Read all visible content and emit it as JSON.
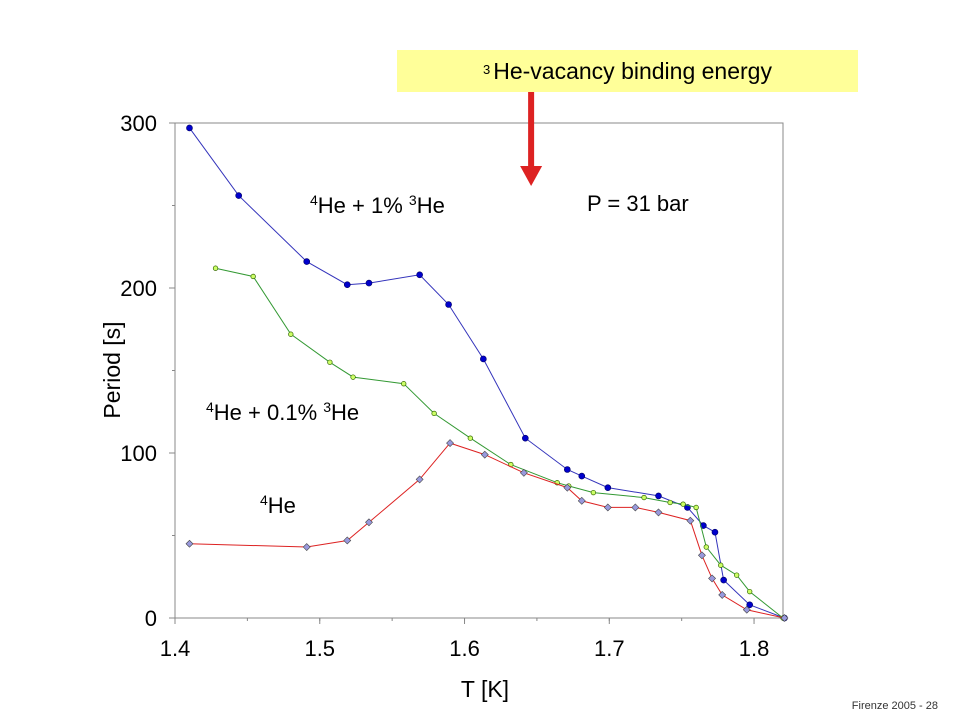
{
  "banner": {
    "superscript": "3",
    "text": "He-vacancy binding energy"
  },
  "footer": "Firenze  2005 - 28",
  "chart_data": {
    "type": "line",
    "title": "",
    "xlabel": "T [K]",
    "ylabel": "Period [s]",
    "xlim": [
      1.4,
      1.82
    ],
    "ylim": [
      0,
      300
    ],
    "x_ticks": [
      {
        "value": 1.4,
        "label": "1.4"
      },
      {
        "value": 1.5,
        "label": "1.5"
      },
      {
        "value": 1.6,
        "label": "1.6"
      },
      {
        "value": 1.7,
        "label": "1.7"
      },
      {
        "value": 1.8,
        "label": "1.8"
      }
    ],
    "y_ticks": [
      {
        "value": 0,
        "label": "0"
      },
      {
        "value": 100,
        "label": "100"
      },
      {
        "value": 200,
        "label": "200"
      },
      {
        "value": 300,
        "label": "300"
      }
    ],
    "grid": false,
    "annotations": {
      "pressure": "P = 31 bar",
      "arrow_x": 1.646
    },
    "series": [
      {
        "name": "4He + 1% 3He",
        "label_parts": [
          "4",
          "He + 1% ",
          "3",
          "He"
        ],
        "color": "#3333bb",
        "marker_color": "#0000cc",
        "marker": "circle",
        "x": [
          1.41,
          1.444,
          1.491,
          1.519,
          1.534,
          1.569,
          1.589,
          1.613,
          1.642,
          1.671,
          1.681,
          1.699,
          1.734,
          1.754,
          1.765,
          1.773,
          1.779,
          1.797,
          1.821
        ],
        "y": [
          297,
          256,
          216,
          202,
          203,
          208,
          190,
          157,
          109,
          90,
          86,
          79,
          74,
          67,
          56,
          52,
          23,
          8,
          0
        ]
      },
      {
        "name": "4He + 0.1% 3He",
        "label_parts": [
          "4",
          "He + 0.1% ",
          "3",
          "He"
        ],
        "color": "#339933",
        "marker_color": "#ccff66",
        "marker": "circle-small",
        "x": [
          1.428,
          1.454,
          1.48,
          1.507,
          1.523,
          1.558,
          1.579,
          1.604,
          1.632,
          1.664,
          1.672,
          1.689,
          1.724,
          1.742,
          1.751,
          1.76,
          1.767,
          1.777,
          1.788,
          1.797,
          1.82
        ],
        "y": [
          212,
          207,
          172,
          155,
          146,
          142,
          124,
          109,
          93,
          82,
          80,
          76,
          73,
          70,
          69,
          67,
          43,
          32,
          26,
          16,
          0
        ]
      },
      {
        "name": "4He",
        "label_parts": [
          "4",
          "He"
        ],
        "color": "#dd2222",
        "marker_color": "#9999dd",
        "marker": "diamond",
        "x": [
          1.41,
          1.491,
          1.519,
          1.534,
          1.569,
          1.59,
          1.614,
          1.641,
          1.671,
          1.681,
          1.699,
          1.718,
          1.734,
          1.756,
          1.764,
          1.771,
          1.778,
          1.795,
          1.821
        ],
        "y": [
          45,
          43,
          47,
          58,
          84,
          106,
          99,
          88,
          79,
          71,
          67,
          67,
          64,
          59,
          38,
          24,
          14,
          5,
          0
        ]
      }
    ]
  }
}
